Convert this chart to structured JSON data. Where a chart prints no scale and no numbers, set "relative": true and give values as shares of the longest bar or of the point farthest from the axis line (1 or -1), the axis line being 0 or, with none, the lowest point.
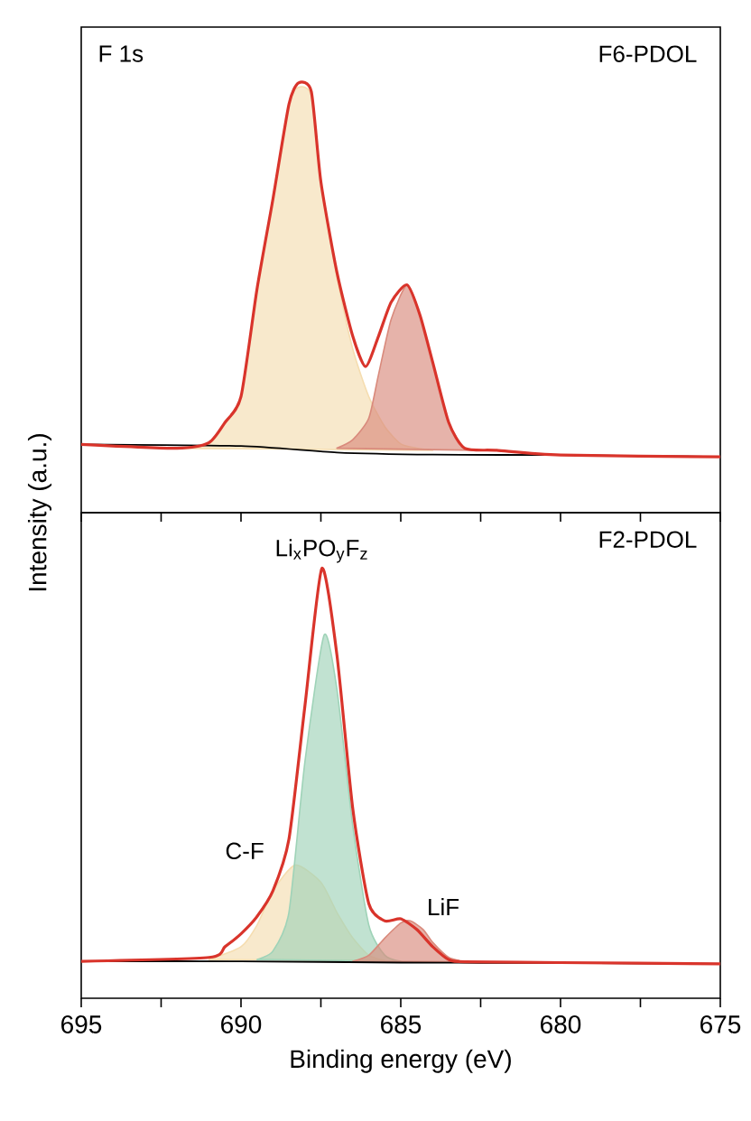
{
  "chart_data": [
    {
      "type": "line",
      "relative": true,
      "ylabel": "Intensity (a.u.)",
      "xlim": [
        695,
        675
      ],
      "tick_labels": false,
      "xticks": [
        695,
        {
          "value": 692.5,
          "label": null
        },
        690,
        {
          "value": 687.5,
          "label": null
        },
        685,
        {
          "value": 682.5,
          "label": null
        },
        680,
        {
          "value": 677.5,
          "label": null
        },
        675
      ],
      "annotations": [
        "F 1s",
        "F6-PDOL"
      ],
      "series": [
        {
          "type": "area",
          "color": "#f5ddb0",
          "x": [
            692,
            691,
            690.5,
            690,
            689.5,
            689,
            688.5,
            688.2,
            687.8,
            687.5,
            687,
            686.5,
            686,
            685.5,
            685,
            684.5,
            684
          ],
          "values": [
            0.15,
            0.16,
            0.21,
            0.27,
            0.52,
            0.73,
            0.95,
            0.99,
            0.97,
            0.77,
            0.55,
            0.38,
            0.27,
            0.2,
            0.16,
            0.15,
            0.145
          ]
        },
        {
          "type": "area",
          "color": "#d98a7c",
          "x": [
            687,
            686.5,
            686,
            685.7,
            685.3,
            684.8,
            684.4,
            684,
            683.5,
            683,
            682.5
          ],
          "values": [
            0.15,
            0.17,
            0.22,
            0.32,
            0.45,
            0.53,
            0.46,
            0.35,
            0.21,
            0.15,
            0.145
          ]
        },
        {
          "color": "#000000",
          "x": [
            695,
            690,
            687,
            684,
            680,
            675
          ],
          "values": [
            0.159,
            0.155,
            0.14,
            0.135,
            0.134,
            0.13
          ]
        },
        {
          "color": "#d9342b",
          "x": [
            695,
            692,
            691,
            690.5,
            690,
            689.5,
            689,
            688.5,
            688.2,
            687.8,
            687.5,
            687,
            686.5,
            686.1,
            685.7,
            685.3,
            684.8,
            684.4,
            684,
            683.5,
            683,
            682,
            680,
            675
          ],
          "values": [
            0.159,
            0.15,
            0.163,
            0.21,
            0.27,
            0.52,
            0.73,
            0.95,
            1.0,
            0.98,
            0.77,
            0.56,
            0.41,
            0.34,
            0.41,
            0.49,
            0.53,
            0.46,
            0.35,
            0.21,
            0.15,
            0.145,
            0.134,
            0.13
          ]
        }
      ]
    },
    {
      "type": "line",
      "relative": true,
      "xlabel": "Binding energy (eV)",
      "xlim": [
        695,
        675
      ],
      "tick_labels": "x",
      "xticks": [
        695,
        {
          "value": 692.5,
          "label": null
        },
        690,
        {
          "value": 687.5,
          "label": null
        },
        685,
        {
          "value": 682.5,
          "label": null
        },
        680,
        {
          "value": 677.5,
          "label": null
        },
        675
      ],
      "annotations": [
        "F2-PDOL",
        {
          "text": "Li$_{x}$PO$_{y}$F$_{z}$",
          "x": 687.47,
          "y": 1.0
        },
        {
          "text": "C-F",
          "x": 688.3,
          "y": 0.31
        },
        {
          "text": "LiF",
          "x": 684.7,
          "y": 0.18
        }
      ],
      "series": [
        {
          "type": "area",
          "color": "#f5ddb0",
          "x": [
            691,
            690,
            689.5,
            689,
            688.3,
            687.5,
            687,
            686.5,
            686,
            685.5
          ],
          "values": [
            0.09,
            0.12,
            0.17,
            0.25,
            0.31,
            0.27,
            0.2,
            0.14,
            0.1,
            0.088
          ]
        },
        {
          "type": "area",
          "color": "#9fd3b8",
          "x": [
            689.5,
            689,
            688.5,
            688,
            687.4,
            687,
            686.5,
            686,
            685.5,
            685
          ],
          "values": [
            0.09,
            0.11,
            0.2,
            0.55,
            0.845,
            0.72,
            0.4,
            0.17,
            0.1,
            0.086
          ]
        },
        {
          "type": "area",
          "color": "#d98a7c",
          "x": [
            686.5,
            686,
            685.5,
            685,
            684.7,
            684.3,
            684,
            683.5,
            683
          ],
          "values": [
            0.086,
            0.1,
            0.14,
            0.175,
            0.18,
            0.16,
            0.13,
            0.095,
            0.085
          ]
        },
        {
          "color": "#000000",
          "x": [
            695,
            690,
            685,
            680,
            675
          ],
          "values": [
            0.086,
            0.086,
            0.083,
            0.082,
            0.08
          ]
        },
        {
          "color": "#d9342b",
          "x": [
            695,
            691,
            690.5,
            690,
            689.5,
            689,
            688.5,
            688,
            687.47,
            687,
            686.5,
            686,
            685.5,
            685,
            684.5,
            684,
            683.5,
            683,
            680,
            675
          ],
          "values": [
            0.086,
            0.095,
            0.12,
            0.15,
            0.19,
            0.25,
            0.37,
            0.68,
            1.0,
            0.8,
            0.44,
            0.22,
            0.18,
            0.185,
            0.16,
            0.12,
            0.09,
            0.085,
            0.083,
            0.08
          ]
        }
      ]
    }
  ]
}
